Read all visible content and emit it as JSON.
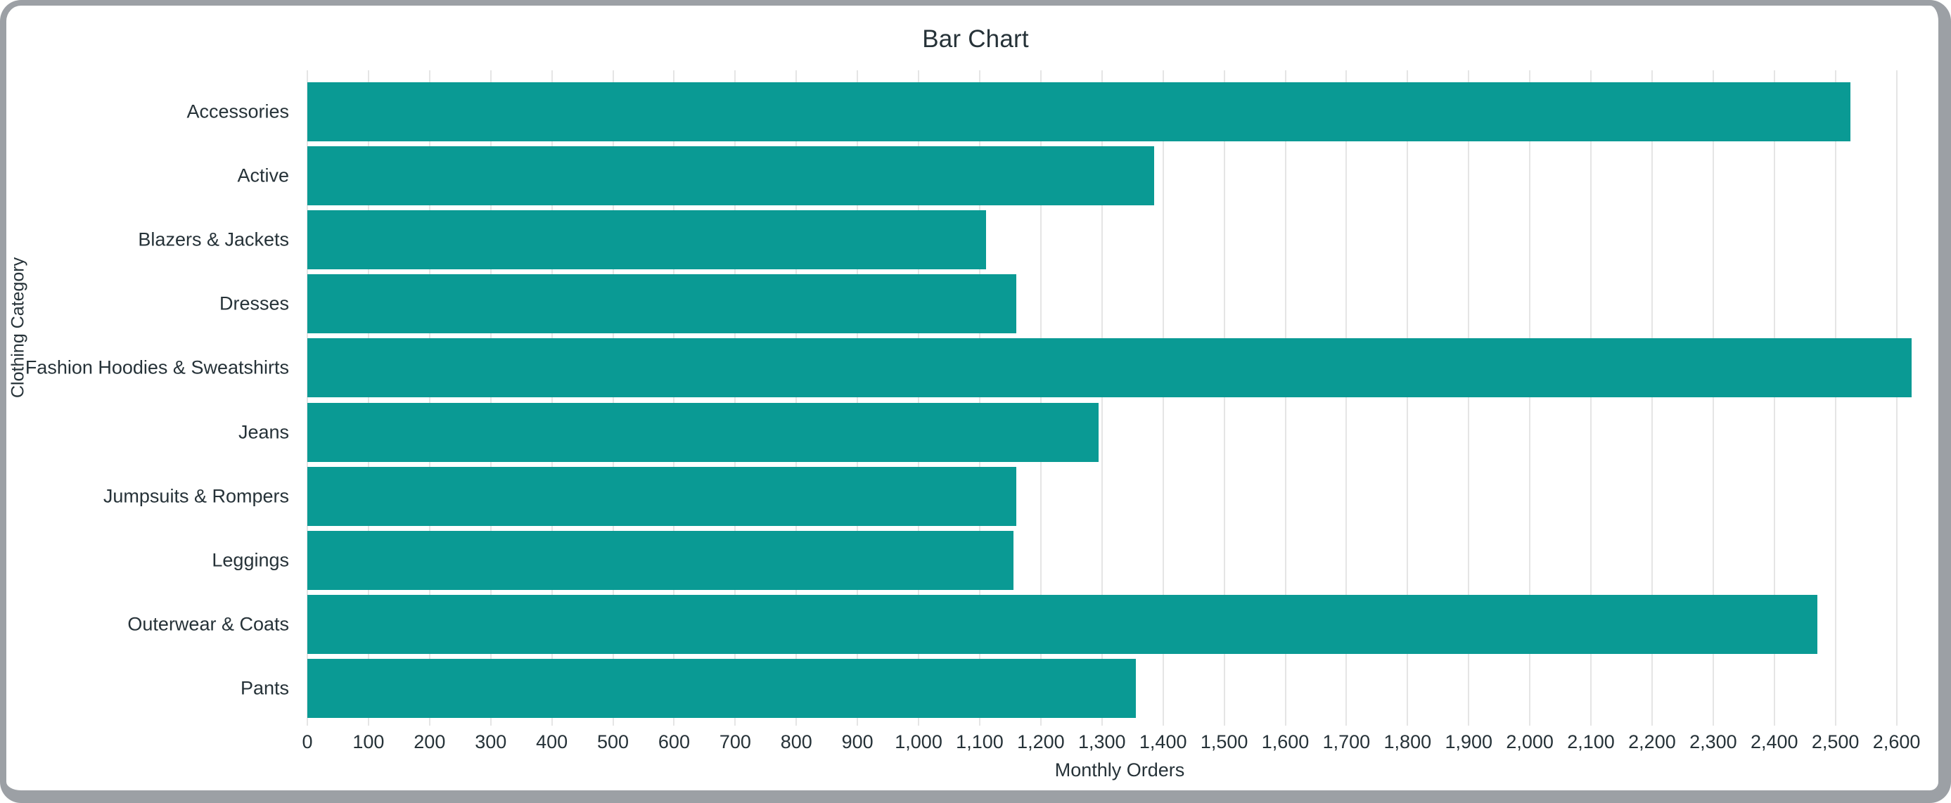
{
  "window": {
    "frame_color": "#9ca0a5",
    "background_color": "#ffffff"
  },
  "chart_data": {
    "type": "bar",
    "orientation": "horizontal",
    "title": "Bar Chart",
    "xlabel": "Monthly Orders",
    "ylabel": "Clothing Category",
    "categories": [
      "Accessories",
      "Active",
      "Blazers & Jackets",
      "Dresses",
      "Fashion Hoodies & Sweatshirts",
      "Jeans",
      "Jumpsuits & Rompers",
      "Leggings",
      "Outerwear & Coats",
      "Pants"
    ],
    "values": [
      2525,
      1385,
      1110,
      1160,
      2625,
      1295,
      1160,
      1155,
      2470,
      1355
    ],
    "xlim": [
      0,
      2658
    ],
    "x_tick_step": 100,
    "x_ticks": [
      0,
      100,
      200,
      300,
      400,
      500,
      600,
      700,
      800,
      900,
      1000,
      1100,
      1200,
      1300,
      1400,
      1500,
      1600,
      1700,
      1800,
      1900,
      2000,
      2100,
      2200,
      2300,
      2400,
      2500,
      2600
    ],
    "x_tick_labels": [
      "0",
      "100",
      "200",
      "300",
      "400",
      "500",
      "600",
      "700",
      "800",
      "900",
      "1,000",
      "1,100",
      "1,200",
      "1,300",
      "1,400",
      "1,500",
      "1,600",
      "1,700",
      "1,800",
      "1,900",
      "2,000",
      "2,100",
      "2,200",
      "2,300",
      "2,400",
      "2,500",
      "2,600"
    ],
    "grid": "vertical",
    "legend_position": "none",
    "bar_color": "#0a9a94",
    "text_color": "#263238",
    "gridline_color": "#e5e5e5"
  }
}
